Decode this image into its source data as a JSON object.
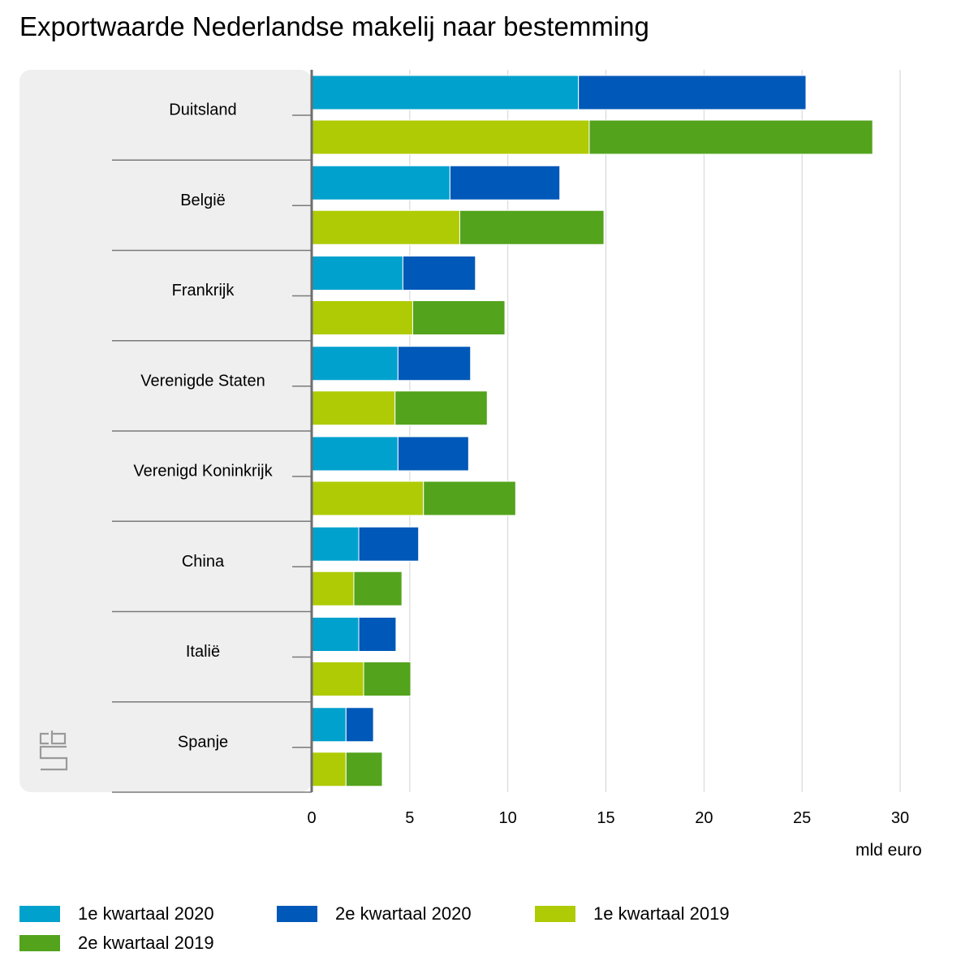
{
  "title": "Exportwaarde Nederlandse makelij naar bestemming",
  "chart_data": {
    "type": "bar",
    "orientation": "horizontal",
    "stacked": true,
    "categories": [
      "Duitsland",
      "België",
      "Frankrijk",
      "Verenigde Staten",
      "Verenigd Koninkrijk",
      "China",
      "Italië",
      "Spanje"
    ],
    "bars": [
      {
        "segments": [
          {
            "name": "1e kwartaal 2020",
            "color": "#00a1cd",
            "values": [
              13.6,
              7.05,
              4.65,
              4.4,
              4.4,
              2.4,
              2.4,
              1.75
            ]
          },
          {
            "name": "2e kwartaal 2020",
            "color": "#0058b8",
            "values": [
              11.6,
              5.6,
              3.7,
              3.7,
              3.6,
              3.05,
              1.9,
              1.4
            ]
          }
        ]
      },
      {
        "segments": [
          {
            "name": "1e kwartaal 2019",
            "color": "#afcb05",
            "values": [
              14.15,
              7.55,
              5.15,
              4.25,
              5.7,
              2.15,
              2.65,
              1.75
            ]
          },
          {
            "name": "2e kwartaal 2019",
            "color": "#53a31d",
            "values": [
              14.45,
              7.35,
              4.7,
              4.7,
              4.7,
              2.45,
              2.4,
              1.85
            ]
          }
        ]
      }
    ],
    "xlim": [
      0,
      30
    ],
    "xticks": [
      0,
      5,
      10,
      15,
      20,
      25,
      30
    ],
    "xlabel": "mld euro",
    "grid": true,
    "legend_position": "bottom"
  },
  "legend": [
    {
      "label": "1e kwartaal 2020",
      "color": "#00a1cd"
    },
    {
      "label": "2e kwartaal 2020",
      "color": "#0058b8"
    },
    {
      "label": "1e kwartaal 2019",
      "color": "#afcb05"
    },
    {
      "label": "2e kwartaal 2019",
      "color": "#53a31d"
    }
  ],
  "logo": "cbs-logo"
}
